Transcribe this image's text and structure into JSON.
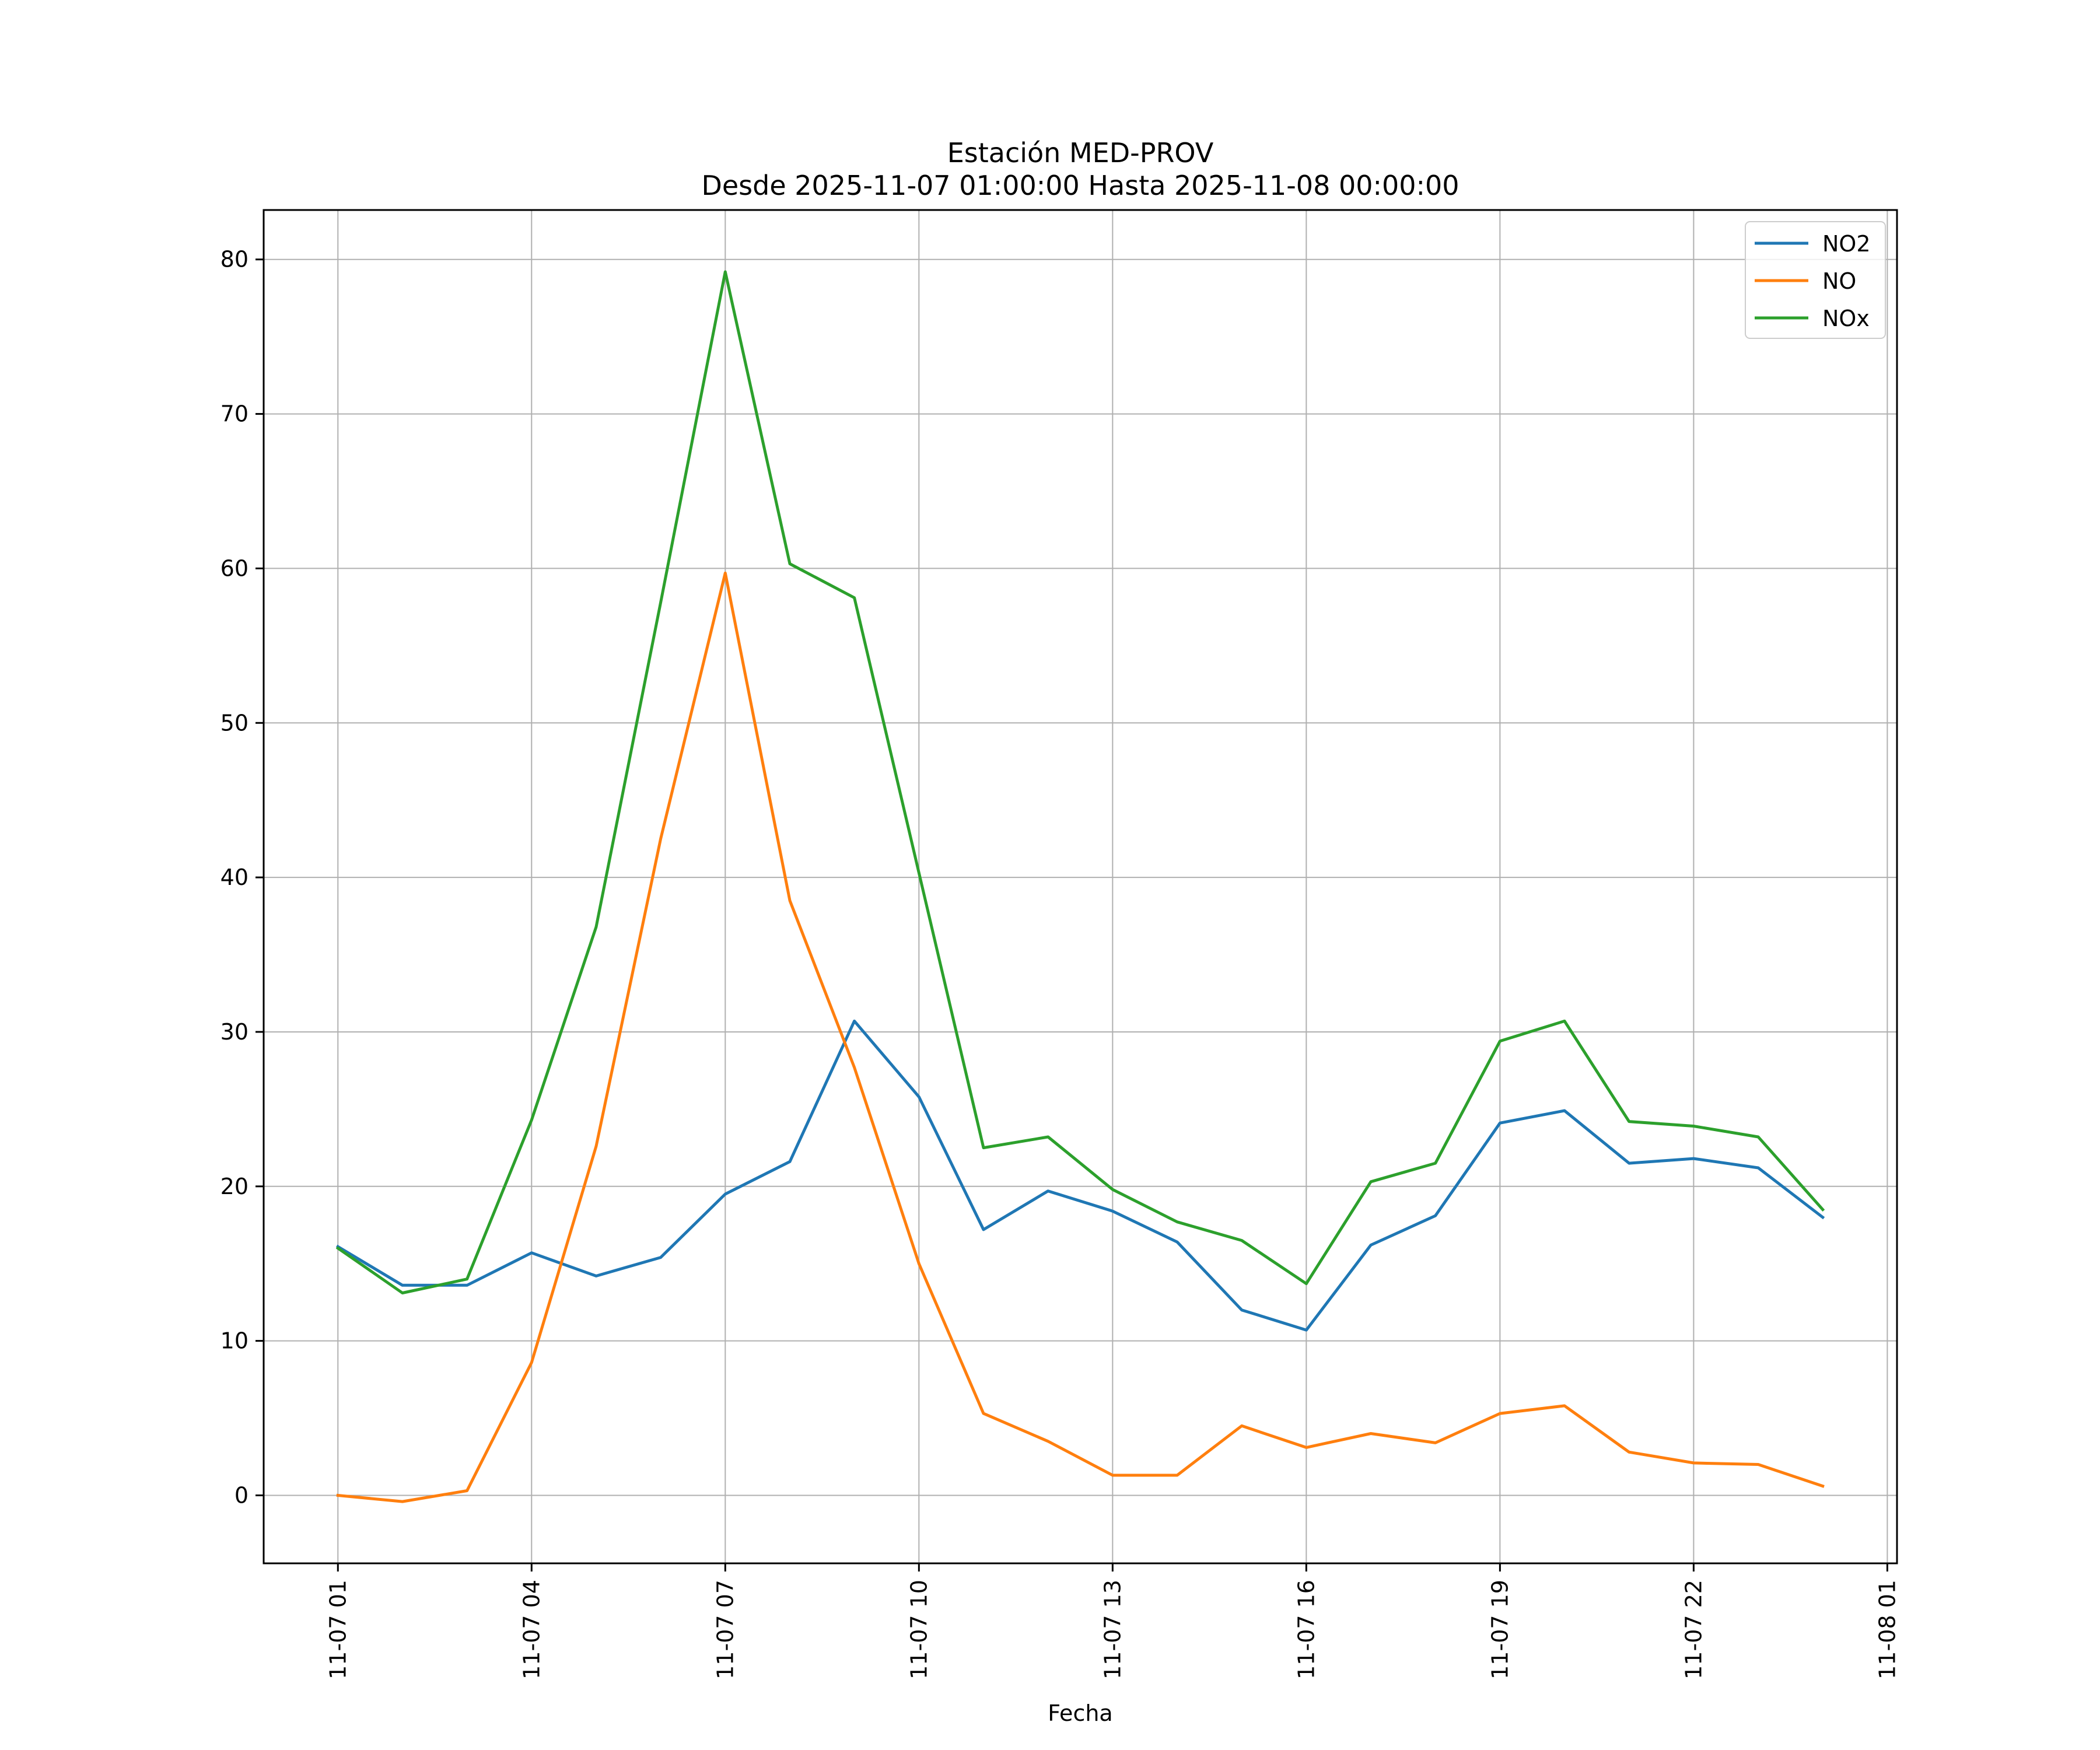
{
  "chart_data": {
    "type": "line",
    "title": [
      "Estación MED-PROV",
      "Desde 2025-11-07 01:00:00 Hasta 2025-11-08 00:00:00"
    ],
    "xlabel": "Fecha",
    "ylabel": "",
    "x": [
      1,
      2,
      3,
      4,
      5,
      6,
      7,
      8,
      9,
      10,
      11,
      12,
      13,
      14,
      15,
      16,
      17,
      18,
      19,
      20,
      21,
      22,
      23,
      24
    ],
    "xlim": [
      -0.15,
      25.15
    ],
    "ylim": [
      -4.4,
      83.2
    ],
    "xticks": [
      1,
      4,
      7,
      10,
      13,
      16,
      19,
      22,
      25
    ],
    "xtick_labels": [
      "11-07 01",
      "11-07 04",
      "11-07 07",
      "11-07 10",
      "11-07 13",
      "11-07 16",
      "11-07 19",
      "11-07 22",
      "11-08 01"
    ],
    "yticks": [
      0,
      10,
      20,
      30,
      40,
      50,
      60,
      70,
      80
    ],
    "ytick_labels": [
      "0",
      "10",
      "20",
      "30",
      "40",
      "50",
      "60",
      "70",
      "80"
    ],
    "grid": true,
    "legend_position": "top-right",
    "series": [
      {
        "name": "NO2",
        "color": "#1f77b4",
        "values": [
          16.1,
          13.6,
          13.6,
          15.7,
          14.2,
          15.4,
          19.5,
          21.6,
          30.7,
          25.8,
          17.2,
          19.7,
          18.4,
          16.4,
          12.0,
          10.7,
          16.2,
          18.1,
          24.1,
          24.9,
          21.5,
          21.8,
          21.2,
          18.0
        ]
      },
      {
        "name": "NO",
        "color": "#ff7f0e",
        "values": [
          0.0,
          -0.4,
          0.3,
          8.6,
          22.6,
          42.5,
          59.7,
          38.5,
          27.7,
          15.0,
          5.3,
          3.5,
          1.3,
          1.3,
          4.5,
          3.1,
          4.0,
          3.4,
          5.3,
          5.8,
          2.8,
          2.1,
          2.0,
          0.6
        ]
      },
      {
        "name": "NOx",
        "color": "#2ca02c",
        "values": [
          16.0,
          13.1,
          14.0,
          24.3,
          36.8,
          57.8,
          79.2,
          60.3,
          58.1,
          40.3,
          22.5,
          23.2,
          19.8,
          17.7,
          16.5,
          13.7,
          20.3,
          21.5,
          29.4,
          30.7,
          24.2,
          23.9,
          23.2,
          18.5
        ]
      }
    ]
  }
}
